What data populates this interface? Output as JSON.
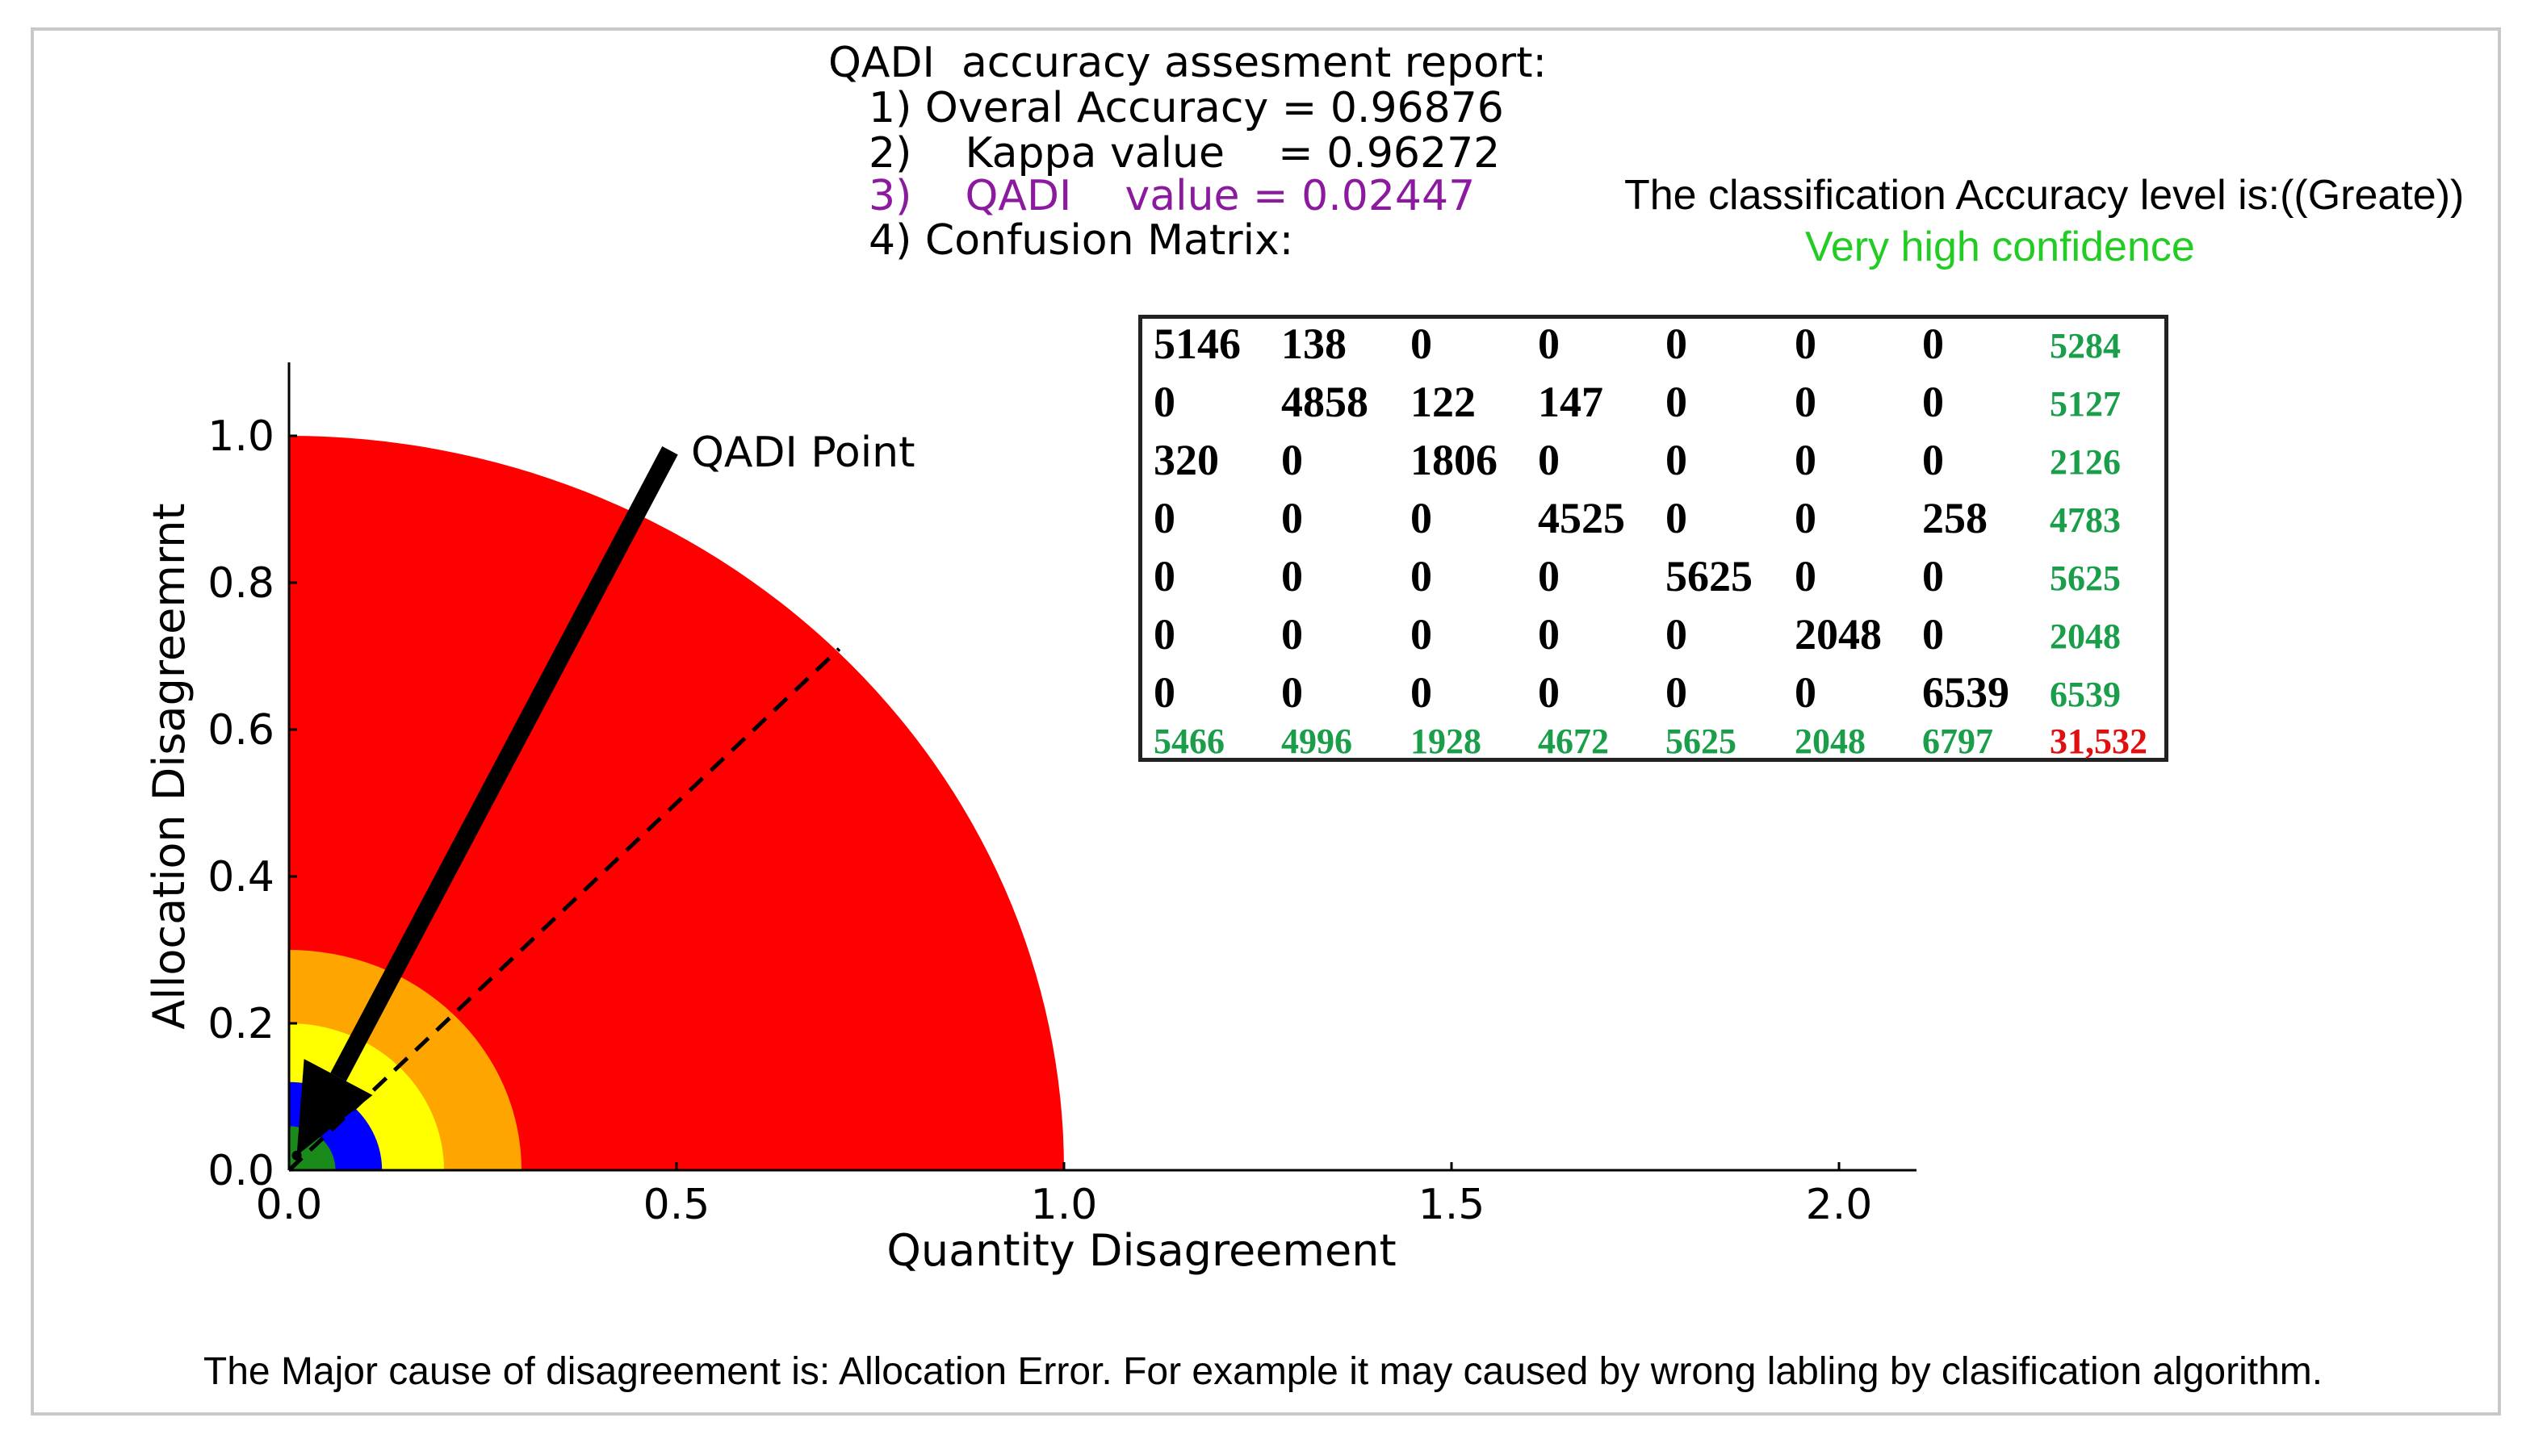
{
  "report": {
    "title": "QADI  accuracy assesment report:",
    "lines": [
      {
        "text": "1) Overal Accuracy = 0.96876",
        "color": "#000000"
      },
      {
        "text": "2)    Kappa value    = 0.96272",
        "color": "#000000"
      },
      {
        "text": "3)    QADI    value = 0.02447",
        "color": "#8B1A9E"
      },
      {
        "text": "4) Confusion Matrix:",
        "color": "#000000"
      }
    ]
  },
  "confidence": {
    "label": "The classification Accuracy level is:((Greate))",
    "value": "Very high confidence",
    "value_color": "#22CC22"
  },
  "matrix": {
    "rows": [
      [
        "5146",
        "138",
        "0",
        "0",
        "0",
        "0",
        "0"
      ],
      [
        "0",
        "4858",
        "122",
        "147",
        "0",
        "0",
        "0"
      ],
      [
        "320",
        "0",
        "1806",
        "0",
        "0",
        "0",
        "0"
      ],
      [
        "0",
        "0",
        "0",
        "4525",
        "0",
        "0",
        "258"
      ],
      [
        "0",
        "0",
        "0",
        "0",
        "5625",
        "0",
        "0"
      ],
      [
        "0",
        "0",
        "0",
        "0",
        "0",
        "2048",
        "0"
      ],
      [
        "0",
        "0",
        "0",
        "0",
        "0",
        "0",
        "6539"
      ]
    ],
    "row_totals": [
      "5284",
      "5127",
      "2126",
      "4783",
      "5625",
      "2048",
      "6539"
    ],
    "col_totals": [
      "5466",
      "4996",
      "1928",
      "4672",
      "5625",
      "2048",
      "6797"
    ],
    "grand_total": "31,532",
    "total_color": "#1A9E4A",
    "grand_color": "#E01010"
  },
  "chart_data": {
    "type": "scatter",
    "xlabel": "Quantity Disagreement",
    "ylabel": "Allocation Disagreemrnt",
    "xlim": [
      0,
      2.1
    ],
    "ylim": [
      0,
      1.1
    ],
    "x_ticks": [
      "0.0",
      "0.5",
      "1.0",
      "1.5",
      "2.0"
    ],
    "y_ticks": [
      "0.0",
      "0.2",
      "0.4",
      "0.6",
      "0.8",
      "1.0"
    ],
    "zones": [
      {
        "radius": 1.0,
        "color": "#FF0000"
      },
      {
        "radius": 0.3,
        "color": "#FFA500"
      },
      {
        "radius": 0.2,
        "color": "#FFFF00"
      },
      {
        "radius": 0.12,
        "color": "#0000FF"
      },
      {
        "radius": 0.06,
        "color": "#1A8A1A"
      }
    ],
    "point": {
      "x": 0.01,
      "y": 0.02
    },
    "annotation": {
      "text": "QADI Point",
      "from": [
        0.5,
        0.98
      ],
      "to": [
        0.01,
        0.02
      ]
    },
    "diagonal": {
      "from": [
        0,
        0
      ],
      "to": [
        0.71,
        0.71
      ]
    }
  },
  "footer": "The Major cause of disagreement is: Allocation Error. For example it may caused by wrong labling by clasification algorithm."
}
